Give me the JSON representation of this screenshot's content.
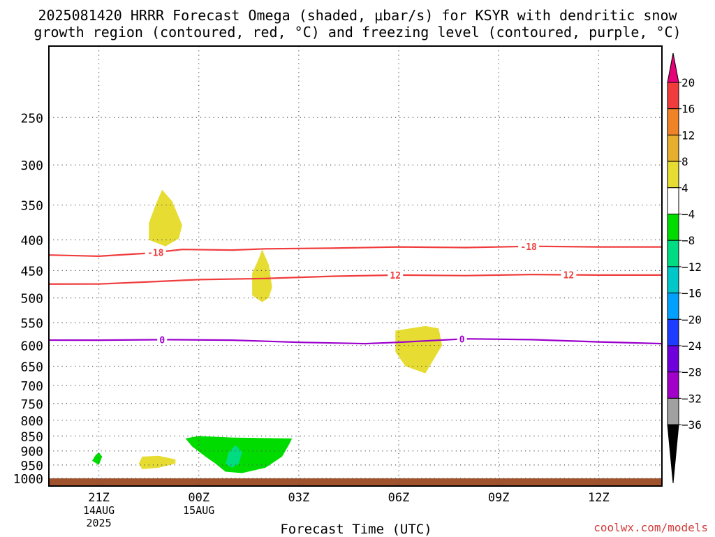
{
  "header": {
    "title_line1": "2025081420 HRRR Forecast Omega (shaded, μbar/s) for KSYR with dendritic snow",
    "title_line2": "growth region (contoured, red, °C) and freezing level (contoured, purple, °C)"
  },
  "footer": {
    "xlabel": "Forecast Time (UTC)",
    "watermark": "coolwx.com/models"
  },
  "chart_data": {
    "type": "contour",
    "title": "2025081420 HRRR Forecast Omega (shaded, μbar/s) for KSYR with dendritic snow growth region (contoured, red, °C) and freezing level (contoured, purple, °C)",
    "xlabel": "Forecast Time (UTC)",
    "ylabel": "",
    "xlim": [
      19.5,
      37.9
    ],
    "ylim": [
      1030,
      190
    ],
    "y_scale": "log-pressure",
    "grid": true,
    "y_ticks": [
      250,
      300,
      350,
      400,
      450,
      500,
      550,
      600,
      650,
      700,
      750,
      800,
      850,
      900,
      950,
      1000
    ],
    "x_ticks": [
      {
        "h": 21,
        "lines": [
          "21Z",
          "14AUG",
          "2025"
        ]
      },
      {
        "h": 24,
        "lines": [
          "00Z",
          "15AUG"
        ]
      },
      {
        "h": 27,
        "lines": [
          "03Z"
        ]
      },
      {
        "h": 30,
        "lines": [
          "06Z"
        ]
      },
      {
        "h": 33,
        "lines": [
          "09Z"
        ]
      },
      {
        "h": 36,
        "lines": [
          "12Z"
        ]
      }
    ],
    "colorbar": {
      "labels": [
        "20",
        "16",
        "12",
        "8",
        "4",
        "−4",
        "−8",
        "−12",
        "−16",
        "−20",
        "−24",
        "−28",
        "−32",
        "−36"
      ],
      "colors": [
        "#f03c3c",
        "#f08228",
        "#e6af2d",
        "#e6dc32",
        "#ffffff",
        "#00dc00",
        "#00dc82",
        "#00c8c8",
        "#00a0ff",
        "#1e3cff",
        "#6e00dc",
        "#a000c8",
        "#a0a0a0"
      ],
      "top_arrow_color": "#e6007a",
      "bottom_arrow_color": "#000000"
    },
    "isotherms": [
      {
        "label": "-18",
        "color": "#f03c3c",
        "label_at": [
          22.7,
          33.9
        ],
        "points": [
          [
            19.5,
            424
          ],
          [
            21,
            426
          ],
          [
            22.5,
            421
          ],
          [
            23.5,
            415
          ],
          [
            25,
            416
          ],
          [
            26,
            414
          ],
          [
            28,
            413
          ],
          [
            30,
            411
          ],
          [
            32,
            412
          ],
          [
            34,
            410
          ],
          [
            36,
            411
          ],
          [
            37.9,
            411
          ]
        ]
      },
      {
        "label": "12",
        "color": "#f03c3c",
        "label_at": [
          29.9,
          35.1
        ],
        "points": [
          [
            19.5,
            474
          ],
          [
            21,
            474
          ],
          [
            22.5,
            470
          ],
          [
            24,
            466
          ],
          [
            26,
            464
          ],
          [
            28,
            460
          ],
          [
            30,
            458
          ],
          [
            32,
            459
          ],
          [
            34,
            457
          ],
          [
            36,
            458
          ],
          [
            37.9,
            458
          ]
        ]
      },
      {
        "label": "0",
        "color": "#9b00cc",
        "label_at": [
          22.9,
          31.9
        ],
        "points": [
          [
            19.5,
            588
          ],
          [
            21,
            588
          ],
          [
            23,
            587
          ],
          [
            25,
            588
          ],
          [
            27,
            593
          ],
          [
            29,
            596
          ],
          [
            30,
            593
          ],
          [
            31,
            589
          ],
          [
            32,
            585
          ],
          [
            34,
            587
          ],
          [
            36,
            592
          ],
          [
            37.9,
            596
          ]
        ]
      }
    ],
    "omega_regions": [
      {
        "value_class": "4 to 8",
        "color": "#e6dc32",
        "points": [
          [
            22.9,
            330
          ],
          [
            23.2,
            345
          ],
          [
            23.5,
            378
          ],
          [
            23.4,
            398
          ],
          [
            23.0,
            410
          ],
          [
            22.5,
            400
          ],
          [
            22.5,
            375
          ],
          [
            22.7,
            350
          ]
        ]
      },
      {
        "value_class": "4 to 8",
        "color": "#e6dc32",
        "points": [
          [
            25.9,
            415
          ],
          [
            26.1,
            440
          ],
          [
            26.2,
            480
          ],
          [
            26.1,
            500
          ],
          [
            25.9,
            508
          ],
          [
            25.6,
            495
          ],
          [
            25.6,
            455
          ],
          [
            25.8,
            430
          ]
        ]
      },
      {
        "value_class": "4 to 8",
        "color": "#e6dc32",
        "points": [
          [
            29.9,
            567
          ],
          [
            30.8,
            557
          ],
          [
            31.2,
            562
          ],
          [
            31.3,
            600
          ],
          [
            31.0,
            640
          ],
          [
            30.8,
            668
          ],
          [
            30.2,
            650
          ],
          [
            29.9,
            615
          ]
        ]
      },
      {
        "value_class": "4 to 8",
        "color": "#e6dc32",
        "points": [
          [
            22.3,
            920
          ],
          [
            22.8,
            917
          ],
          [
            23.3,
            930
          ],
          [
            23.3,
            945
          ],
          [
            22.8,
            960
          ],
          [
            22.3,
            965
          ],
          [
            22.2,
            945
          ]
        ]
      },
      {
        "value_class": "-4 to -8",
        "color": "#00dc00",
        "points": [
          [
            21.0,
            905
          ],
          [
            21.1,
            920
          ],
          [
            21.0,
            950
          ],
          [
            20.8,
            935
          ],
          [
            20.9,
            915
          ]
        ]
      },
      {
        "value_class": "-4 to -8",
        "color": "#00dc00",
        "points": [
          [
            23.6,
            858
          ],
          [
            24.0,
            850
          ],
          [
            25.0,
            855
          ],
          [
            26.8,
            858
          ],
          [
            26.7,
            880
          ],
          [
            26.5,
            920
          ],
          [
            26.0,
            960
          ],
          [
            25.3,
            980
          ],
          [
            24.8,
            975
          ],
          [
            24.5,
            945
          ],
          [
            24.2,
            920
          ],
          [
            23.8,
            885
          ]
        ]
      },
      {
        "value_class": "-8 to -12",
        "color": "#00dc82",
        "points": [
          [
            25.1,
            880
          ],
          [
            25.3,
            905
          ],
          [
            25.2,
            945
          ],
          [
            25.0,
            960
          ],
          [
            24.8,
            945
          ],
          [
            24.9,
            905
          ]
        ]
      }
    ],
    "terrain": {
      "color": "#a0522d",
      "surface_pressure": 1000
    }
  }
}
